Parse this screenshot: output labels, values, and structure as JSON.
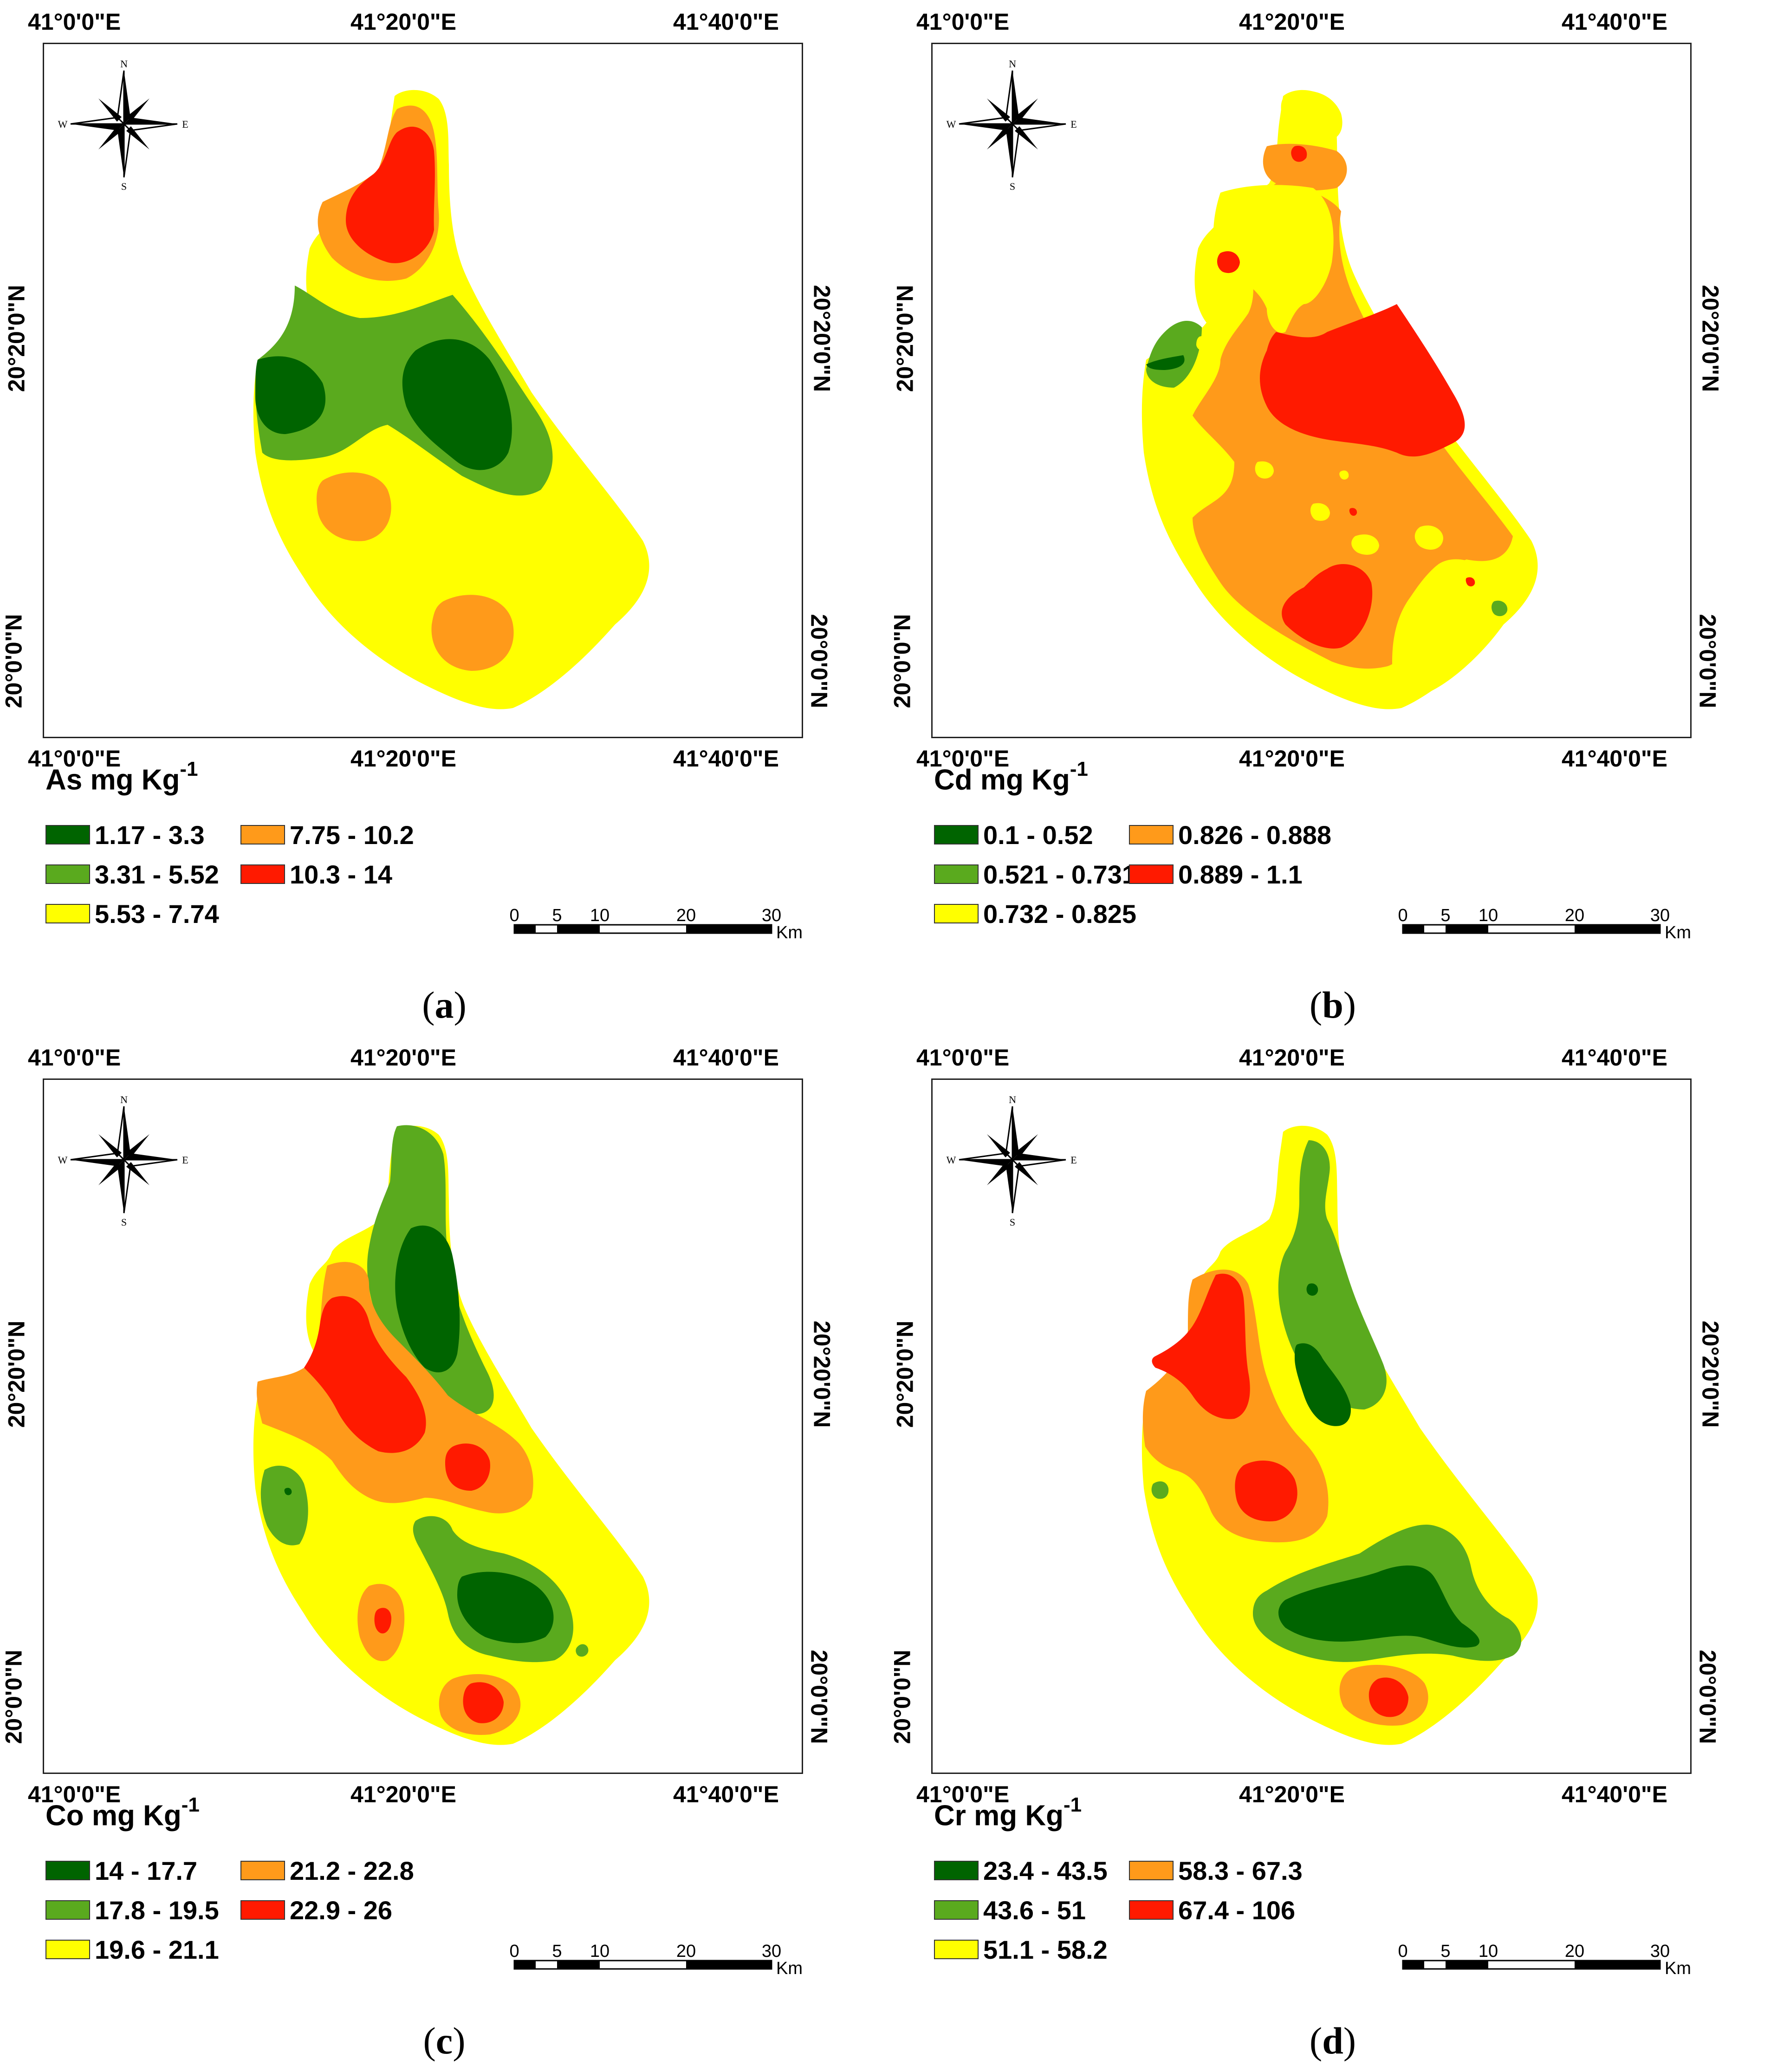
{
  "coordinates": {
    "lon_left": "41°0'0\"E",
    "lon_mid": "41°20'0\"E",
    "lon_right": "41°40'0\"E",
    "lat_upper": "20°20'0\"N",
    "lat_lower": "20°0'0\"N"
  },
  "north_arrow": {
    "n": "N",
    "s": "S",
    "e": "E",
    "w": "W"
  },
  "scale_bar": {
    "ticks": [
      "0",
      "5",
      "10",
      "20",
      "30"
    ],
    "unit": "Km"
  },
  "colors": {
    "dark_green": "#006400",
    "green": "#5aaa1e",
    "yellow": "#ffff00",
    "orange": "#ff9a1a",
    "red": "#ff1a00"
  },
  "panels": [
    {
      "element": "As",
      "unit": "mg Kg",
      "exponent": "-1",
      "caption_open": "(",
      "caption_letter": "a",
      "caption_close": ")",
      "classes": [
        "1.17 - 3.3",
        "3.31 - 5.52",
        "5.53 - 7.74",
        "7.75 - 10.2",
        "10.3 - 14"
      ]
    },
    {
      "element": "Cd",
      "unit": "mg Kg",
      "exponent": "-1",
      "caption_open": "(",
      "caption_letter": "b",
      "caption_close": ")",
      "classes": [
        "0.1 - 0.52",
        "0.521 - 0.731",
        "0.732 - 0.825",
        "0.826 - 0.888",
        "0.889 - 1.1"
      ]
    },
    {
      "element": "Co",
      "unit": "mg Kg",
      "exponent": "-1",
      "caption_open": "(",
      "caption_letter": "c",
      "caption_close": ")",
      "classes": [
        "14 - 17.7",
        "17.8 - 19.5",
        "19.6 - 21.1",
        "21.2 - 22.8",
        "22.9 - 26"
      ]
    },
    {
      "element": "Cr",
      "unit": "mg Kg",
      "exponent": "-1",
      "caption_open": "(",
      "caption_letter": "d",
      "caption_close": ")",
      "classes": [
        "23.4 - 43.5",
        "43.6 - 51",
        "51.1 - 58.2",
        "58.3 - 67.3",
        "67.4 - 106"
      ]
    }
  ]
}
